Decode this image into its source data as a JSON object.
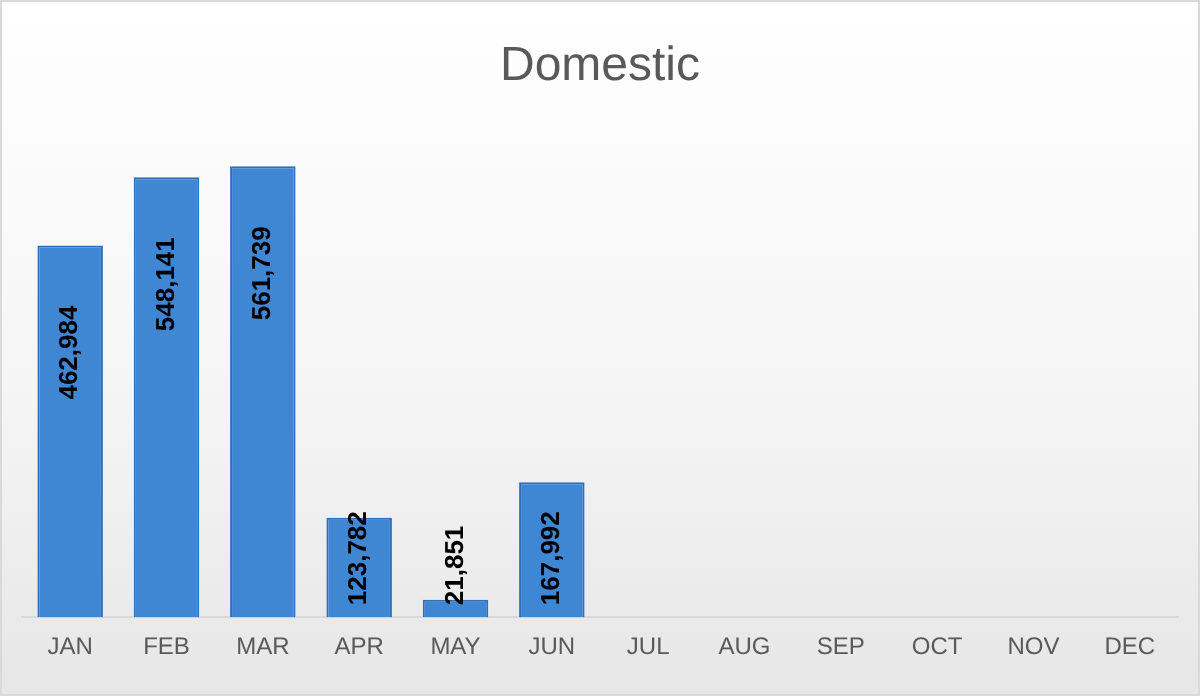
{
  "chart_data": {
    "type": "bar",
    "title": "Domestic",
    "categories": [
      "JAN",
      "FEB",
      "MAR",
      "APR",
      "MAY",
      "JUN",
      "JUL",
      "AUG",
      "SEP",
      "OCT",
      "NOV",
      "DEC"
    ],
    "values": [
      462984,
      548141,
      561739,
      123782,
      21851,
      167992,
      null,
      null,
      null,
      null,
      null,
      null
    ],
    "value_labels": [
      "462,984",
      "548,141",
      "561,739",
      "123,782",
      "21,851",
      "167,992",
      null,
      null,
      null,
      null,
      null,
      null
    ],
    "color": "#3f86d3",
    "grid": false,
    "legend": false
  }
}
